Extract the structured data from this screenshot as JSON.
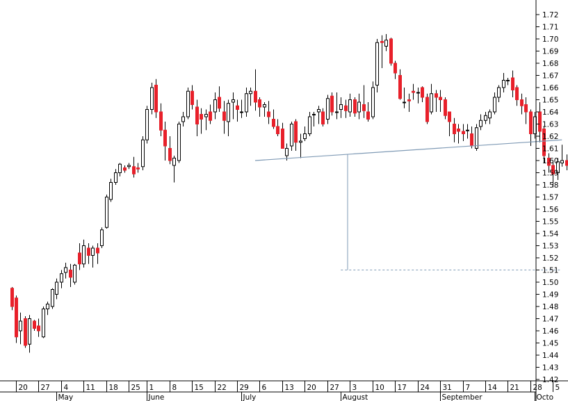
{
  "chart_data": {
    "type": "candlestick",
    "ylim": [
      1.415,
      1.725
    ],
    "yticks": [
      "1.72",
      "1.71",
      "1.70",
      "1.69",
      "1.68",
      "1.67",
      "1.66",
      "1.65",
      "1.64",
      "1.63",
      "1.62",
      "1.61",
      "1.60",
      "1.59",
      "1.58",
      "1.57",
      "1.56",
      "1.55",
      "1.54",
      "1.53",
      "1.52",
      "1.51",
      "1.50",
      "1.49",
      "1.48",
      "1.47",
      "1.46",
      "1.45",
      "1.44",
      "1.43",
      "1.42"
    ],
    "xticks": [
      {
        "day": 1,
        "label": "20"
      },
      {
        "day": 6,
        "label": "27"
      },
      {
        "day": 11,
        "label": "4"
      },
      {
        "day": 16,
        "label": "11"
      },
      {
        "day": 21,
        "label": "18"
      },
      {
        "day": 26,
        "label": "25"
      },
      {
        "day": 30,
        "label": "1"
      },
      {
        "day": 35,
        "label": "8"
      },
      {
        "day": 40,
        "label": "15"
      },
      {
        "day": 45,
        "label": "22"
      },
      {
        "day": 50,
        "label": "29"
      },
      {
        "day": 55,
        "label": "6"
      },
      {
        "day": 60,
        "label": "13"
      },
      {
        "day": 65,
        "label": "20"
      },
      {
        "day": 70,
        "label": "27"
      },
      {
        "day": 75,
        "label": "3"
      },
      {
        "day": 80,
        "label": "10"
      },
      {
        "day": 85,
        "label": "17"
      },
      {
        "day": 90,
        "label": "24"
      },
      {
        "day": 95,
        "label": "31"
      },
      {
        "day": 100,
        "label": "7"
      },
      {
        "day": 105,
        "label": "14"
      },
      {
        "day": 110,
        "label": "21"
      },
      {
        "day": 115,
        "label": "28"
      },
      {
        "day": 120,
        "label": "5"
      }
    ],
    "months": [
      {
        "day": 10,
        "label": "May"
      },
      {
        "day": 30,
        "label": "June"
      },
      {
        "day": 51,
        "label": "July"
      },
      {
        "day": 73,
        "label": "August"
      },
      {
        "day": 95,
        "label": "September"
      },
      {
        "day": 116,
        "label": "Octo"
      }
    ],
    "candles": [
      [
        1.495,
        1.496,
        1.477,
        1.48
      ],
      [
        1.487,
        1.489,
        1.45,
        1.455
      ],
      [
        1.46,
        1.475,
        1.449,
        1.468
      ],
      [
        1.47,
        1.472,
        1.446,
        1.448
      ],
      [
        1.449,
        1.473,
        1.442,
        1.47
      ],
      [
        1.468,
        1.469,
        1.46,
        1.462
      ],
      [
        1.464,
        1.47,
        1.455,
        1.46
      ],
      [
        1.455,
        1.48,
        1.454,
        1.478
      ],
      [
        1.478,
        1.484,
        1.473,
        1.482
      ],
      [
        1.48,
        1.495,
        1.478,
        1.494
      ],
      [
        1.49,
        1.503,
        1.486,
        1.5
      ],
      [
        1.5,
        1.51,
        1.495,
        1.507
      ],
      [
        1.508,
        1.516,
        1.503,
        1.512
      ],
      [
        1.51,
        1.515,
        1.496,
        1.504
      ],
      [
        1.5,
        1.515,
        1.498,
        1.514
      ],
      [
        1.524,
        1.532,
        1.51,
        1.515
      ],
      [
        1.515,
        1.535,
        1.512,
        1.53
      ],
      [
        1.528,
        1.532,
        1.515,
        1.522
      ],
      [
        1.522,
        1.53,
        1.512,
        1.528
      ],
      [
        1.528,
        1.532,
        1.515,
        1.524
      ],
      [
        1.53,
        1.545,
        1.528,
        1.543
      ],
      [
        1.545,
        1.572,
        1.544,
        1.57
      ],
      [
        1.568,
        1.585,
        1.566,
        1.582
      ],
      [
        1.582,
        1.593,
        1.58,
        1.59
      ],
      [
        1.59,
        1.598,
        1.587,
        1.597
      ],
      [
        1.594,
        1.596,
        1.59,
        1.592
      ],
      [
        1.595,
        1.598,
        1.593,
        1.596
      ],
      [
        1.595,
        1.603,
        1.586,
        1.589
      ],
      [
        1.594,
        1.598,
        1.59,
        1.593
      ],
      [
        1.595,
        1.62,
        1.592,
        1.617
      ],
      [
        1.617,
        1.645,
        1.614,
        1.642
      ],
      [
        1.642,
        1.664,
        1.638,
        1.66
      ],
      [
        1.662,
        1.667,
        1.635,
        1.64
      ],
      [
        1.64,
        1.647,
        1.62,
        1.625
      ],
      [
        1.625,
        1.632,
        1.6,
        1.612
      ],
      [
        1.61,
        1.62,
        1.597,
        1.6
      ],
      [
        1.596,
        1.604,
        1.582,
        1.602
      ],
      [
        1.6,
        1.632,
        1.598,
        1.63
      ],
      [
        1.632,
        1.64,
        1.628,
        1.636
      ],
      [
        1.636,
        1.66,
        1.634,
        1.657
      ],
      [
        1.657,
        1.662,
        1.642,
        1.646
      ],
      [
        1.644,
        1.65,
        1.62,
        1.63
      ],
      [
        1.638,
        1.643,
        1.622,
        1.634
      ],
      [
        1.636,
        1.642,
        1.625,
        1.638
      ],
      [
        1.64,
        1.646,
        1.63,
        1.633
      ],
      [
        1.64,
        1.656,
        1.634,
        1.65
      ],
      [
        1.652,
        1.661,
        1.64,
        1.643
      ],
      [
        1.64,
        1.649,
        1.622,
        1.633
      ],
      [
        1.632,
        1.65,
        1.62,
        1.647
      ],
      [
        1.648,
        1.656,
        1.634,
        1.65
      ],
      [
        1.645,
        1.65,
        1.632,
        1.642
      ],
      [
        1.64,
        1.65,
        1.635,
        1.64
      ],
      [
        1.64,
        1.66,
        1.636,
        1.655
      ],
      [
        1.655,
        1.66,
        1.645,
        1.657
      ],
      [
        1.657,
        1.675,
        1.641,
        1.648
      ],
      [
        1.65,
        1.652,
        1.636,
        1.644
      ],
      [
        1.644,
        1.648,
        1.636,
        1.646
      ],
      [
        1.64,
        1.649,
        1.63,
        1.636
      ],
      [
        1.634,
        1.642,
        1.626,
        1.628
      ],
      [
        1.628,
        1.634,
        1.62,
        1.622
      ],
      [
        1.626,
        1.631,
        1.61,
        1.61
      ],
      [
        1.604,
        1.614,
        1.6,
        1.61
      ],
      [
        1.612,
        1.632,
        1.608,
        1.63
      ],
      [
        1.632,
        1.634,
        1.608,
        1.615
      ],
      [
        1.615,
        1.622,
        1.602,
        1.616
      ],
      [
        1.618,
        1.628,
        1.616,
        1.622
      ],
      [
        1.622,
        1.64,
        1.62,
        1.636
      ],
      [
        1.638,
        1.64,
        1.628,
        1.638
      ],
      [
        1.64,
        1.645,
        1.63,
        1.642
      ],
      [
        1.64,
        1.643,
        1.628,
        1.63
      ],
      [
        1.634,
        1.654,
        1.63,
        1.651
      ],
      [
        1.653,
        1.656,
        1.637,
        1.64
      ],
      [
        1.64,
        1.656,
        1.634,
        1.64
      ],
      [
        1.642,
        1.652,
        1.635,
        1.646
      ],
      [
        1.645,
        1.65,
        1.635,
        1.641
      ],
      [
        1.64,
        1.655,
        1.636,
        1.65
      ],
      [
        1.65,
        1.652,
        1.636,
        1.639
      ],
      [
        1.64,
        1.655,
        1.634,
        1.648
      ],
      [
        1.646,
        1.662,
        1.635,
        1.641
      ],
      [
        1.64,
        1.648,
        1.632,
        1.634
      ],
      [
        1.636,
        1.665,
        1.634,
        1.66
      ],
      [
        1.662,
        1.7,
        1.656,
        1.697
      ],
      [
        1.698,
        1.703,
        1.676,
        1.697
      ],
      [
        1.694,
        1.704,
        1.69,
        1.699
      ],
      [
        1.7,
        1.701,
        1.678,
        1.68
      ],
      [
        1.68,
        1.682,
        1.667,
        1.672
      ],
      [
        1.67,
        1.675,
        1.65,
        1.651
      ],
      [
        1.648,
        1.66,
        1.643,
        1.648
      ],
      [
        1.65,
        1.655,
        1.64,
        1.649
      ],
      [
        1.657,
        1.663,
        1.65,
        1.656
      ],
      [
        1.656,
        1.66,
        1.647,
        1.656
      ],
      [
        1.66,
        1.661,
        1.648,
        1.652
      ],
      [
        1.652,
        1.655,
        1.63,
        1.632
      ],
      [
        1.64,
        1.663,
        1.638,
        1.655
      ],
      [
        1.655,
        1.658,
        1.64,
        1.652
      ],
      [
        1.652,
        1.658,
        1.64,
        1.65
      ],
      [
        1.65,
        1.652,
        1.634,
        1.637
      ],
      [
        1.64,
        1.64,
        1.62,
        1.632
      ],
      [
        1.63,
        1.635,
        1.615,
        1.622
      ],
      [
        1.626,
        1.63,
        1.614,
        1.624
      ],
      [
        1.624,
        1.63,
        1.616,
        1.622
      ],
      [
        1.625,
        1.63,
        1.618,
        1.625
      ],
      [
        1.622,
        1.628,
        1.61,
        1.612
      ],
      [
        1.61,
        1.63,
        1.608,
        1.627
      ],
      [
        1.628,
        1.638,
        1.625,
        1.633
      ],
      [
        1.633,
        1.64,
        1.63,
        1.637
      ],
      [
        1.635,
        1.642,
        1.63,
        1.64
      ],
      [
        1.64,
        1.656,
        1.638,
        1.652
      ],
      [
        1.652,
        1.662,
        1.648,
        1.66
      ],
      [
        1.66,
        1.672,
        1.656,
        1.666
      ],
      [
        1.666,
        1.668,
        1.662,
        1.666
      ],
      [
        1.668,
        1.674,
        1.652,
        1.658
      ],
      [
        1.66,
        1.662,
        1.645,
        1.65
      ],
      [
        1.65,
        1.655,
        1.638,
        1.645
      ],
      [
        1.646,
        1.652,
        1.63,
        1.64
      ],
      [
        1.64,
        1.642,
        1.612,
        1.622
      ],
      [
        1.622,
        1.64,
        1.618,
        1.636
      ],
      [
        1.64,
        1.648,
        1.615,
        1.624
      ],
      [
        1.626,
        1.628,
        1.598,
        1.604
      ],
      [
        1.602,
        1.606,
        1.59,
        1.596
      ],
      [
        1.596,
        1.6,
        1.578,
        1.589
      ],
      [
        1.59,
        1.602,
        1.584,
        1.599
      ],
      [
        1.598,
        1.613,
        1.595,
        1.6
      ],
      [
        1.6,
        1.605,
        1.592,
        1.596
      ],
      [
        1.596,
        1.598,
        1.58,
        1.594
      ]
    ],
    "up_color": "#ffffff",
    "down_color": "#e8202a",
    "neckline": {
      "from": [
        54,
        1.6
      ],
      "to": [
        122,
        1.617
      ]
    },
    "target_line": {
      "day": 74.5,
      "from": 1.605,
      "to": 1.51
    },
    "target_level": {
      "value": 1.51,
      "from_day": 73,
      "to_day": 122
    },
    "annotation_color": "#7f9ab5"
  }
}
